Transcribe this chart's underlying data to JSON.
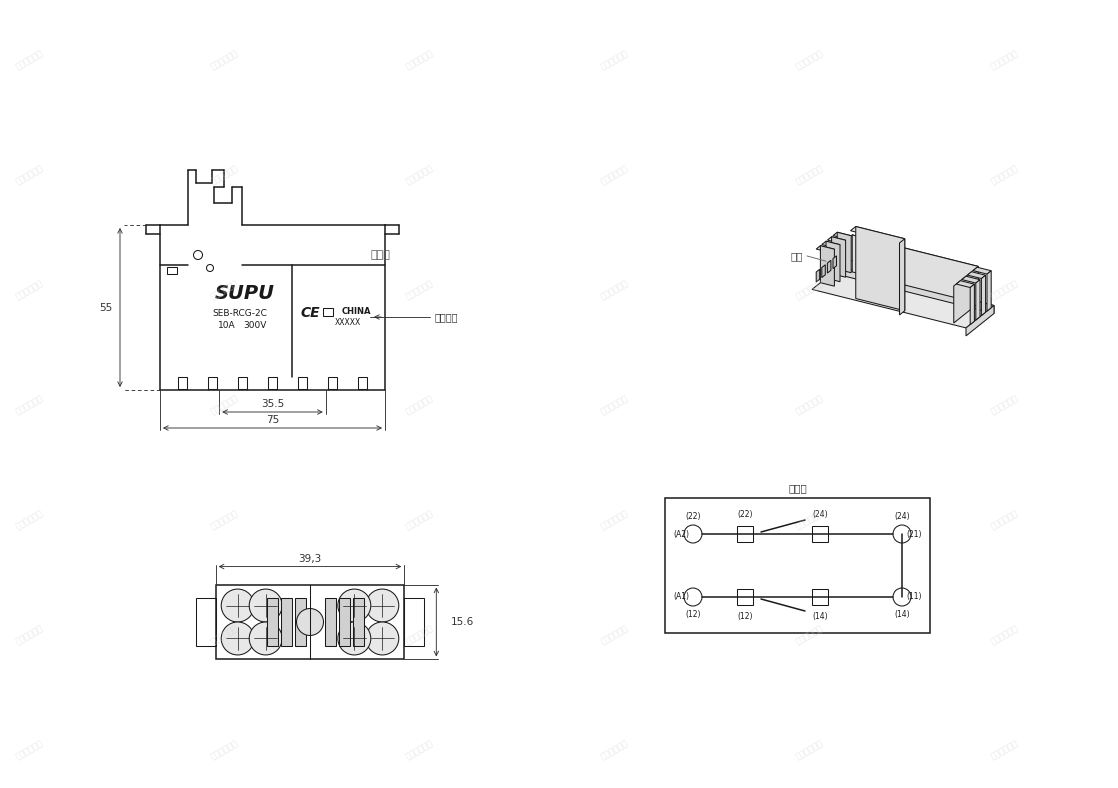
{
  "bg_color": "#ffffff",
  "lc": "#1a1a1a",
  "dc": "#333333",
  "gc": "#aaaaaa",
  "title_waixing": "外形图",
  "title_cemian": "側面",
  "title_jiexian": "接线图",
  "dim_55": "55",
  "dim_35_5": "35.5",
  "dim_75": "75",
  "dim_39_3": "39,3",
  "dim_15_6": "15.6",
  "label_supu": "SUPU",
  "label_model": "SEB-RCG-2C",
  "label_10a": "10A",
  "label_300v": "300V",
  "label_china": "CHINA",
  "label_xxxxx": "XXXXX",
  "label_riqi": "日期编码",
  "wm_text": "仅供内部使用",
  "wm_color": "#d0d0d0",
  "wm_alpha": 0.5
}
